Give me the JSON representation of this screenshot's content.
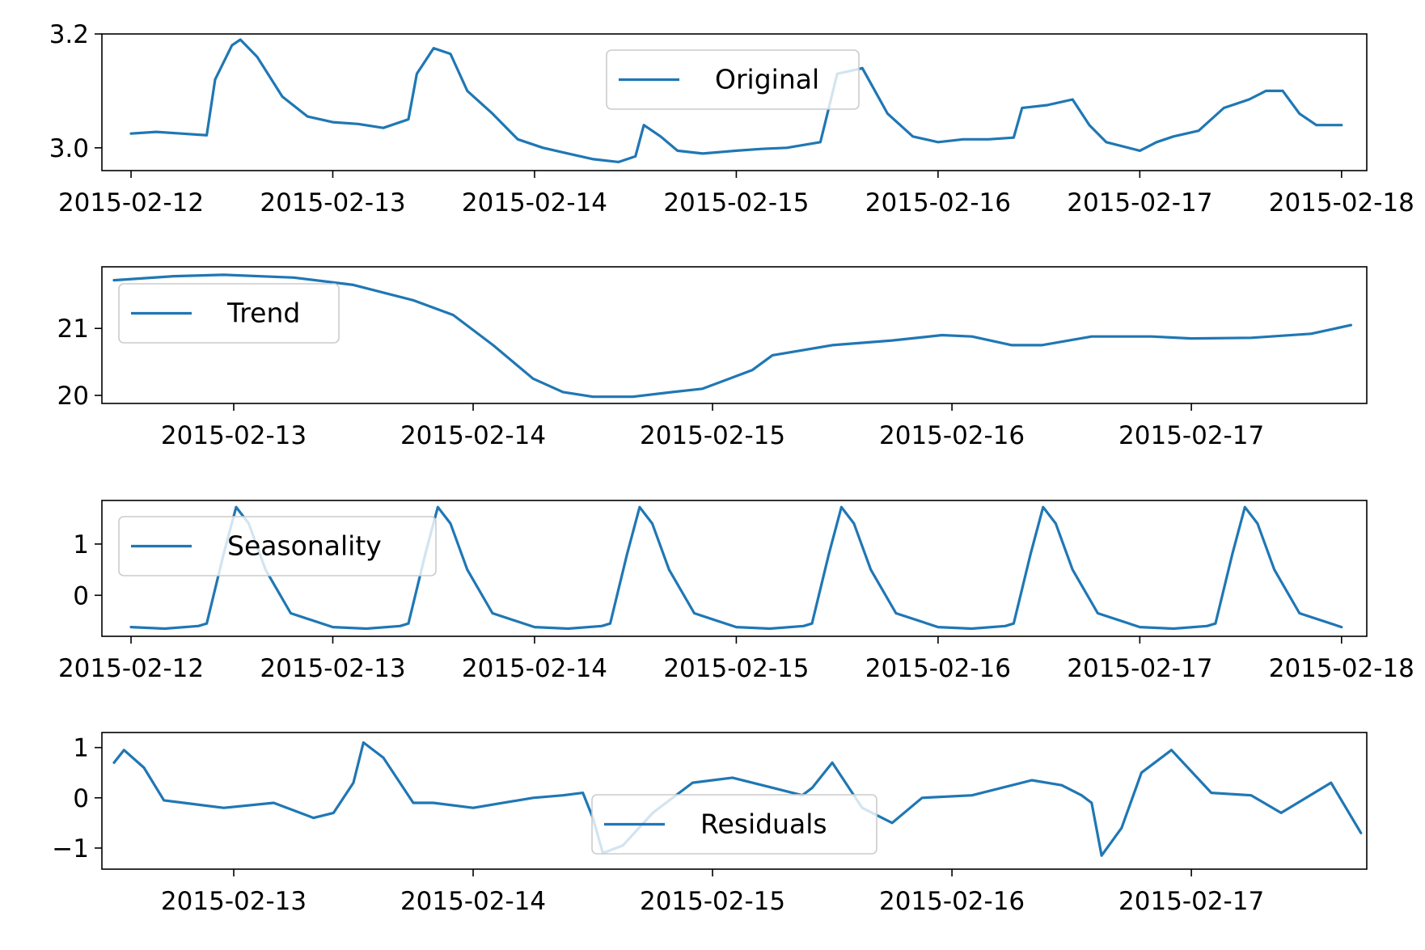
{
  "chart_data": [
    {
      "type": "line",
      "legend": {
        "label": "Original",
        "placement": "upper center"
      },
      "color": "#1f77b4",
      "xlim": [
        "2015-02-11T20:32",
        "2015-02-18T03:00"
      ],
      "ylim": [
        2.96,
        3.2
      ],
      "yticks": [
        3.0,
        3.2
      ],
      "ytick_labels": [
        "3.0",
        "3.2"
      ],
      "xticks": [
        "2015-02-12",
        "2015-02-13",
        "2015-02-14",
        "2015-02-15",
        "2015-02-16",
        "2015-02-17",
        "2015-02-18"
      ],
      "xtick_labels": [
        "2015-02-12",
        "2015-02-13",
        "2015-02-14",
        "2015-02-15",
        "2015-02-16",
        "2015-02-17",
        "2015-02-18"
      ],
      "series": [
        {
          "x": [
            "2015-02-12T00:00",
            "2015-02-12T03:00",
            "2015-02-12T06:00",
            "2015-02-12T09:00",
            "2015-02-12T10:00",
            "2015-02-12T12:00",
            "2015-02-12T13:00",
            "2015-02-12T15:00",
            "2015-02-12T18:00",
            "2015-02-12T21:00",
            "2015-02-13T00:00",
            "2015-02-13T03:00",
            "2015-02-13T06:00",
            "2015-02-13T09:00",
            "2015-02-13T10:00",
            "2015-02-13T12:00",
            "2015-02-13T14:00",
            "2015-02-13T16:00",
            "2015-02-13T19:00",
            "2015-02-13T22:00",
            "2015-02-14T01:00",
            "2015-02-14T04:00",
            "2015-02-14T07:00",
            "2015-02-14T10:00",
            "2015-02-14T12:00",
            "2015-02-14T13:00",
            "2015-02-14T15:00",
            "2015-02-14T17:00",
            "2015-02-14T20:00",
            "2015-02-15T00:00",
            "2015-02-15T03:00",
            "2015-02-15T06:00",
            "2015-02-15T08:00",
            "2015-02-15T10:00",
            "2015-02-15T12:00",
            "2015-02-15T15:00",
            "2015-02-15T18:00",
            "2015-02-15T21:00",
            "2015-02-16T00:00",
            "2015-02-16T03:00",
            "2015-02-16T06:00",
            "2015-02-16T09:00",
            "2015-02-16T10:00",
            "2015-02-16T13:00",
            "2015-02-16T16:00",
            "2015-02-16T18:00",
            "2015-02-16T20:00",
            "2015-02-17T00:00",
            "2015-02-17T02:00",
            "2015-02-17T04:00",
            "2015-02-17T07:00",
            "2015-02-17T10:00",
            "2015-02-17T13:00",
            "2015-02-17T15:00",
            "2015-02-17T17:00",
            "2015-02-17T19:00",
            "2015-02-17T21:00",
            "2015-02-18T00:00"
          ],
          "y": [
            3.025,
            3.028,
            3.025,
            3.022,
            3.12,
            3.18,
            3.19,
            3.16,
            3.09,
            3.055,
            3.045,
            3.042,
            3.035,
            3.05,
            3.13,
            3.175,
            3.165,
            3.1,
            3.06,
            3.015,
            3.0,
            2.99,
            2.98,
            2.975,
            2.985,
            3.04,
            3.02,
            2.995,
            2.99,
            2.995,
            2.998,
            3.0,
            3.005,
            3.01,
            3.13,
            3.14,
            3.06,
            3.02,
            3.01,
            3.015,
            3.015,
            3.018,
            3.07,
            3.075,
            3.085,
            3.04,
            3.01,
            2.995,
            3.01,
            3.02,
            3.03,
            3.07,
            3.085,
            3.1,
            3.1,
            3.06,
            3.04,
            3.04
          ]
        }
      ]
    },
    {
      "type": "line",
      "legend": {
        "label": "Trend",
        "placement": "upper left"
      },
      "color": "#1f77b4",
      "xlim": [
        "2015-02-12T10:47",
        "2015-02-17T17:35"
      ],
      "ylim": [
        19.88,
        21.92
      ],
      "yticks": [
        20,
        21
      ],
      "ytick_labels": [
        "20",
        "21"
      ],
      "xticks": [
        "2015-02-13",
        "2015-02-14",
        "2015-02-15",
        "2015-02-16",
        "2015-02-17"
      ],
      "xtick_labels": [
        "2015-02-13",
        "2015-02-14",
        "2015-02-15",
        "2015-02-16",
        "2015-02-17"
      ],
      "series": [
        {
          "x": [
            "2015-02-12T12:00",
            "2015-02-12T18:00",
            "2015-02-12T23:00",
            "2015-02-13T06:00",
            "2015-02-13T12:00",
            "2015-02-13T18:00",
            "2015-02-13T22:00",
            "2015-02-14T02:00",
            "2015-02-14T06:00",
            "2015-02-14T09:00",
            "2015-02-14T12:00",
            "2015-02-14T16:00",
            "2015-02-14T20:00",
            "2015-02-14T23:00",
            "2015-02-15T04:00",
            "2015-02-15T06:00",
            "2015-02-15T12:00",
            "2015-02-15T18:00",
            "2015-02-15T23:00",
            "2015-02-16T02:00",
            "2015-02-16T06:00",
            "2015-02-16T09:00",
            "2015-02-16T14:00",
            "2015-02-16T20:00",
            "2015-02-17T00:00",
            "2015-02-17T06:00",
            "2015-02-17T12:00",
            "2015-02-17T16:00"
          ],
          "y": [
            21.72,
            21.78,
            21.8,
            21.76,
            21.65,
            21.42,
            21.2,
            20.75,
            20.25,
            20.05,
            19.98,
            19.98,
            20.05,
            20.1,
            20.38,
            20.6,
            20.75,
            20.82,
            20.9,
            20.88,
            20.75,
            20.75,
            20.88,
            20.88,
            20.85,
            20.86,
            20.92,
            21.05
          ]
        }
      ]
    },
    {
      "type": "line",
      "legend": {
        "label": "Seasonality",
        "placement": "upper left"
      },
      "color": "#1f77b4",
      "xlim": [
        "2015-02-11T20:32",
        "2015-02-18T03:00"
      ],
      "ylim": [
        -0.8,
        1.85
      ],
      "yticks": [
        0,
        1
      ],
      "ytick_labels": [
        "0",
        "1"
      ],
      "xticks": [
        "2015-02-12",
        "2015-02-13",
        "2015-02-14",
        "2015-02-15",
        "2015-02-16",
        "2015-02-17",
        "2015-02-18"
      ],
      "xtick_labels": [
        "2015-02-12",
        "2015-02-13",
        "2015-02-14",
        "2015-02-15",
        "2015-02-16",
        "2015-02-17",
        "2015-02-18"
      ],
      "series": [
        {
          "x": [
            "2015-02-12T00:00",
            "2015-02-12T04:00",
            "2015-02-12T08:00",
            "2015-02-12T09:00",
            "2015-02-12T11:00",
            "2015-02-12T12:30",
            "2015-02-12T14:00",
            "2015-02-12T16:00",
            "2015-02-12T19:00",
            "2015-02-13T00:00",
            "2015-02-13T04:00",
            "2015-02-13T08:00",
            "2015-02-13T09:00",
            "2015-02-13T11:00",
            "2015-02-13T12:30",
            "2015-02-13T14:00",
            "2015-02-13T16:00",
            "2015-02-13T19:00",
            "2015-02-14T00:00",
            "2015-02-14T04:00",
            "2015-02-14T08:00",
            "2015-02-14T09:00",
            "2015-02-14T11:00",
            "2015-02-14T12:30",
            "2015-02-14T14:00",
            "2015-02-14T16:00",
            "2015-02-14T19:00",
            "2015-02-15T00:00",
            "2015-02-15T04:00",
            "2015-02-15T08:00",
            "2015-02-15T09:00",
            "2015-02-15T11:00",
            "2015-02-15T12:30",
            "2015-02-15T14:00",
            "2015-02-15T16:00",
            "2015-02-15T19:00",
            "2015-02-16T00:00",
            "2015-02-16T04:00",
            "2015-02-16T08:00",
            "2015-02-16T09:00",
            "2015-02-16T11:00",
            "2015-02-16T12:30",
            "2015-02-16T14:00",
            "2015-02-16T16:00",
            "2015-02-16T19:00",
            "2015-02-17T00:00",
            "2015-02-17T04:00",
            "2015-02-17T08:00",
            "2015-02-17T09:00",
            "2015-02-17T11:00",
            "2015-02-17T12:30",
            "2015-02-17T14:00",
            "2015-02-17T16:00",
            "2015-02-17T19:00",
            "2015-02-18T00:00"
          ],
          "y": [
            -0.62,
            -0.65,
            -0.6,
            -0.55,
            0.8,
            1.72,
            1.4,
            0.5,
            -0.35,
            -0.62,
            -0.65,
            -0.6,
            -0.55,
            0.8,
            1.72,
            1.4,
            0.5,
            -0.35,
            -0.62,
            -0.65,
            -0.6,
            -0.55,
            0.8,
            1.72,
            1.4,
            0.5,
            -0.35,
            -0.62,
            -0.65,
            -0.6,
            -0.55,
            0.8,
            1.72,
            1.4,
            0.5,
            -0.35,
            -0.62,
            -0.65,
            -0.6,
            -0.55,
            0.8,
            1.72,
            1.4,
            0.5,
            -0.35,
            -0.62,
            -0.65,
            -0.6,
            -0.55,
            0.8,
            1.72,
            1.4,
            0.5,
            -0.35,
            -0.62
          ]
        }
      ]
    },
    {
      "type": "line",
      "legend": {
        "label": "Residuals",
        "placement": "lower center"
      },
      "color": "#1f77b4",
      "xlim": [
        "2015-02-12T10:47",
        "2015-02-17T17:35"
      ],
      "ylim": [
        -1.42,
        1.3
      ],
      "yticks": [
        -1,
        0,
        1
      ],
      "ytick_labels": [
        "−1",
        "0",
        "1"
      ],
      "xticks": [
        "2015-02-13",
        "2015-02-14",
        "2015-02-15",
        "2015-02-16",
        "2015-02-17"
      ],
      "xtick_labels": [
        "2015-02-13",
        "2015-02-14",
        "2015-02-15",
        "2015-02-16",
        "2015-02-17"
      ],
      "series": [
        {
          "x": [
            "2015-02-12T12:00",
            "2015-02-12T13:00",
            "2015-02-12T15:00",
            "2015-02-12T17:00",
            "2015-02-12T19:00",
            "2015-02-12T23:00",
            "2015-02-13T04:00",
            "2015-02-13T08:00",
            "2015-02-13T10:00",
            "2015-02-13T12:00",
            "2015-02-13T13:00",
            "2015-02-13T15:00",
            "2015-02-13T18:00",
            "2015-02-13T20:00",
            "2015-02-14T00:00",
            "2015-02-14T06:00",
            "2015-02-14T09:00",
            "2015-02-14T11:00",
            "2015-02-14T12:00",
            "2015-02-14T13:00",
            "2015-02-14T15:00",
            "2015-02-14T18:00",
            "2015-02-14T22:00",
            "2015-02-15T02:00",
            "2015-02-15T06:00",
            "2015-02-15T09:00",
            "2015-02-15T10:00",
            "2015-02-15T12:00",
            "2015-02-15T15:00",
            "2015-02-15T18:00",
            "2015-02-15T21:00",
            "2015-02-16T02:00",
            "2015-02-16T08:00",
            "2015-02-16T11:00",
            "2015-02-16T13:00",
            "2015-02-16T14:00",
            "2015-02-16T15:00",
            "2015-02-16T17:00",
            "2015-02-16T19:00",
            "2015-02-16T22:00",
            "2015-02-17T02:00",
            "2015-02-17T06:00",
            "2015-02-17T09:00",
            "2015-02-17T14:00",
            "2015-02-17T17:00"
          ],
          "y": [
            0.7,
            0.95,
            0.6,
            -0.05,
            -0.1,
            -0.2,
            -0.1,
            -0.4,
            -0.3,
            0.3,
            1.1,
            0.8,
            -0.1,
            -0.1,
            -0.2,
            0.0,
            0.05,
            0.1,
            -0.4,
            -1.1,
            -0.95,
            -0.3,
            0.3,
            0.4,
            0.2,
            0.05,
            0.2,
            0.7,
            -0.2,
            -0.5,
            0.0,
            0.05,
            0.35,
            0.25,
            0.05,
            -0.1,
            -1.15,
            -0.6,
            0.5,
            0.95,
            0.1,
            0.05,
            -0.3,
            0.3,
            -0.7
          ]
        }
      ]
    }
  ]
}
